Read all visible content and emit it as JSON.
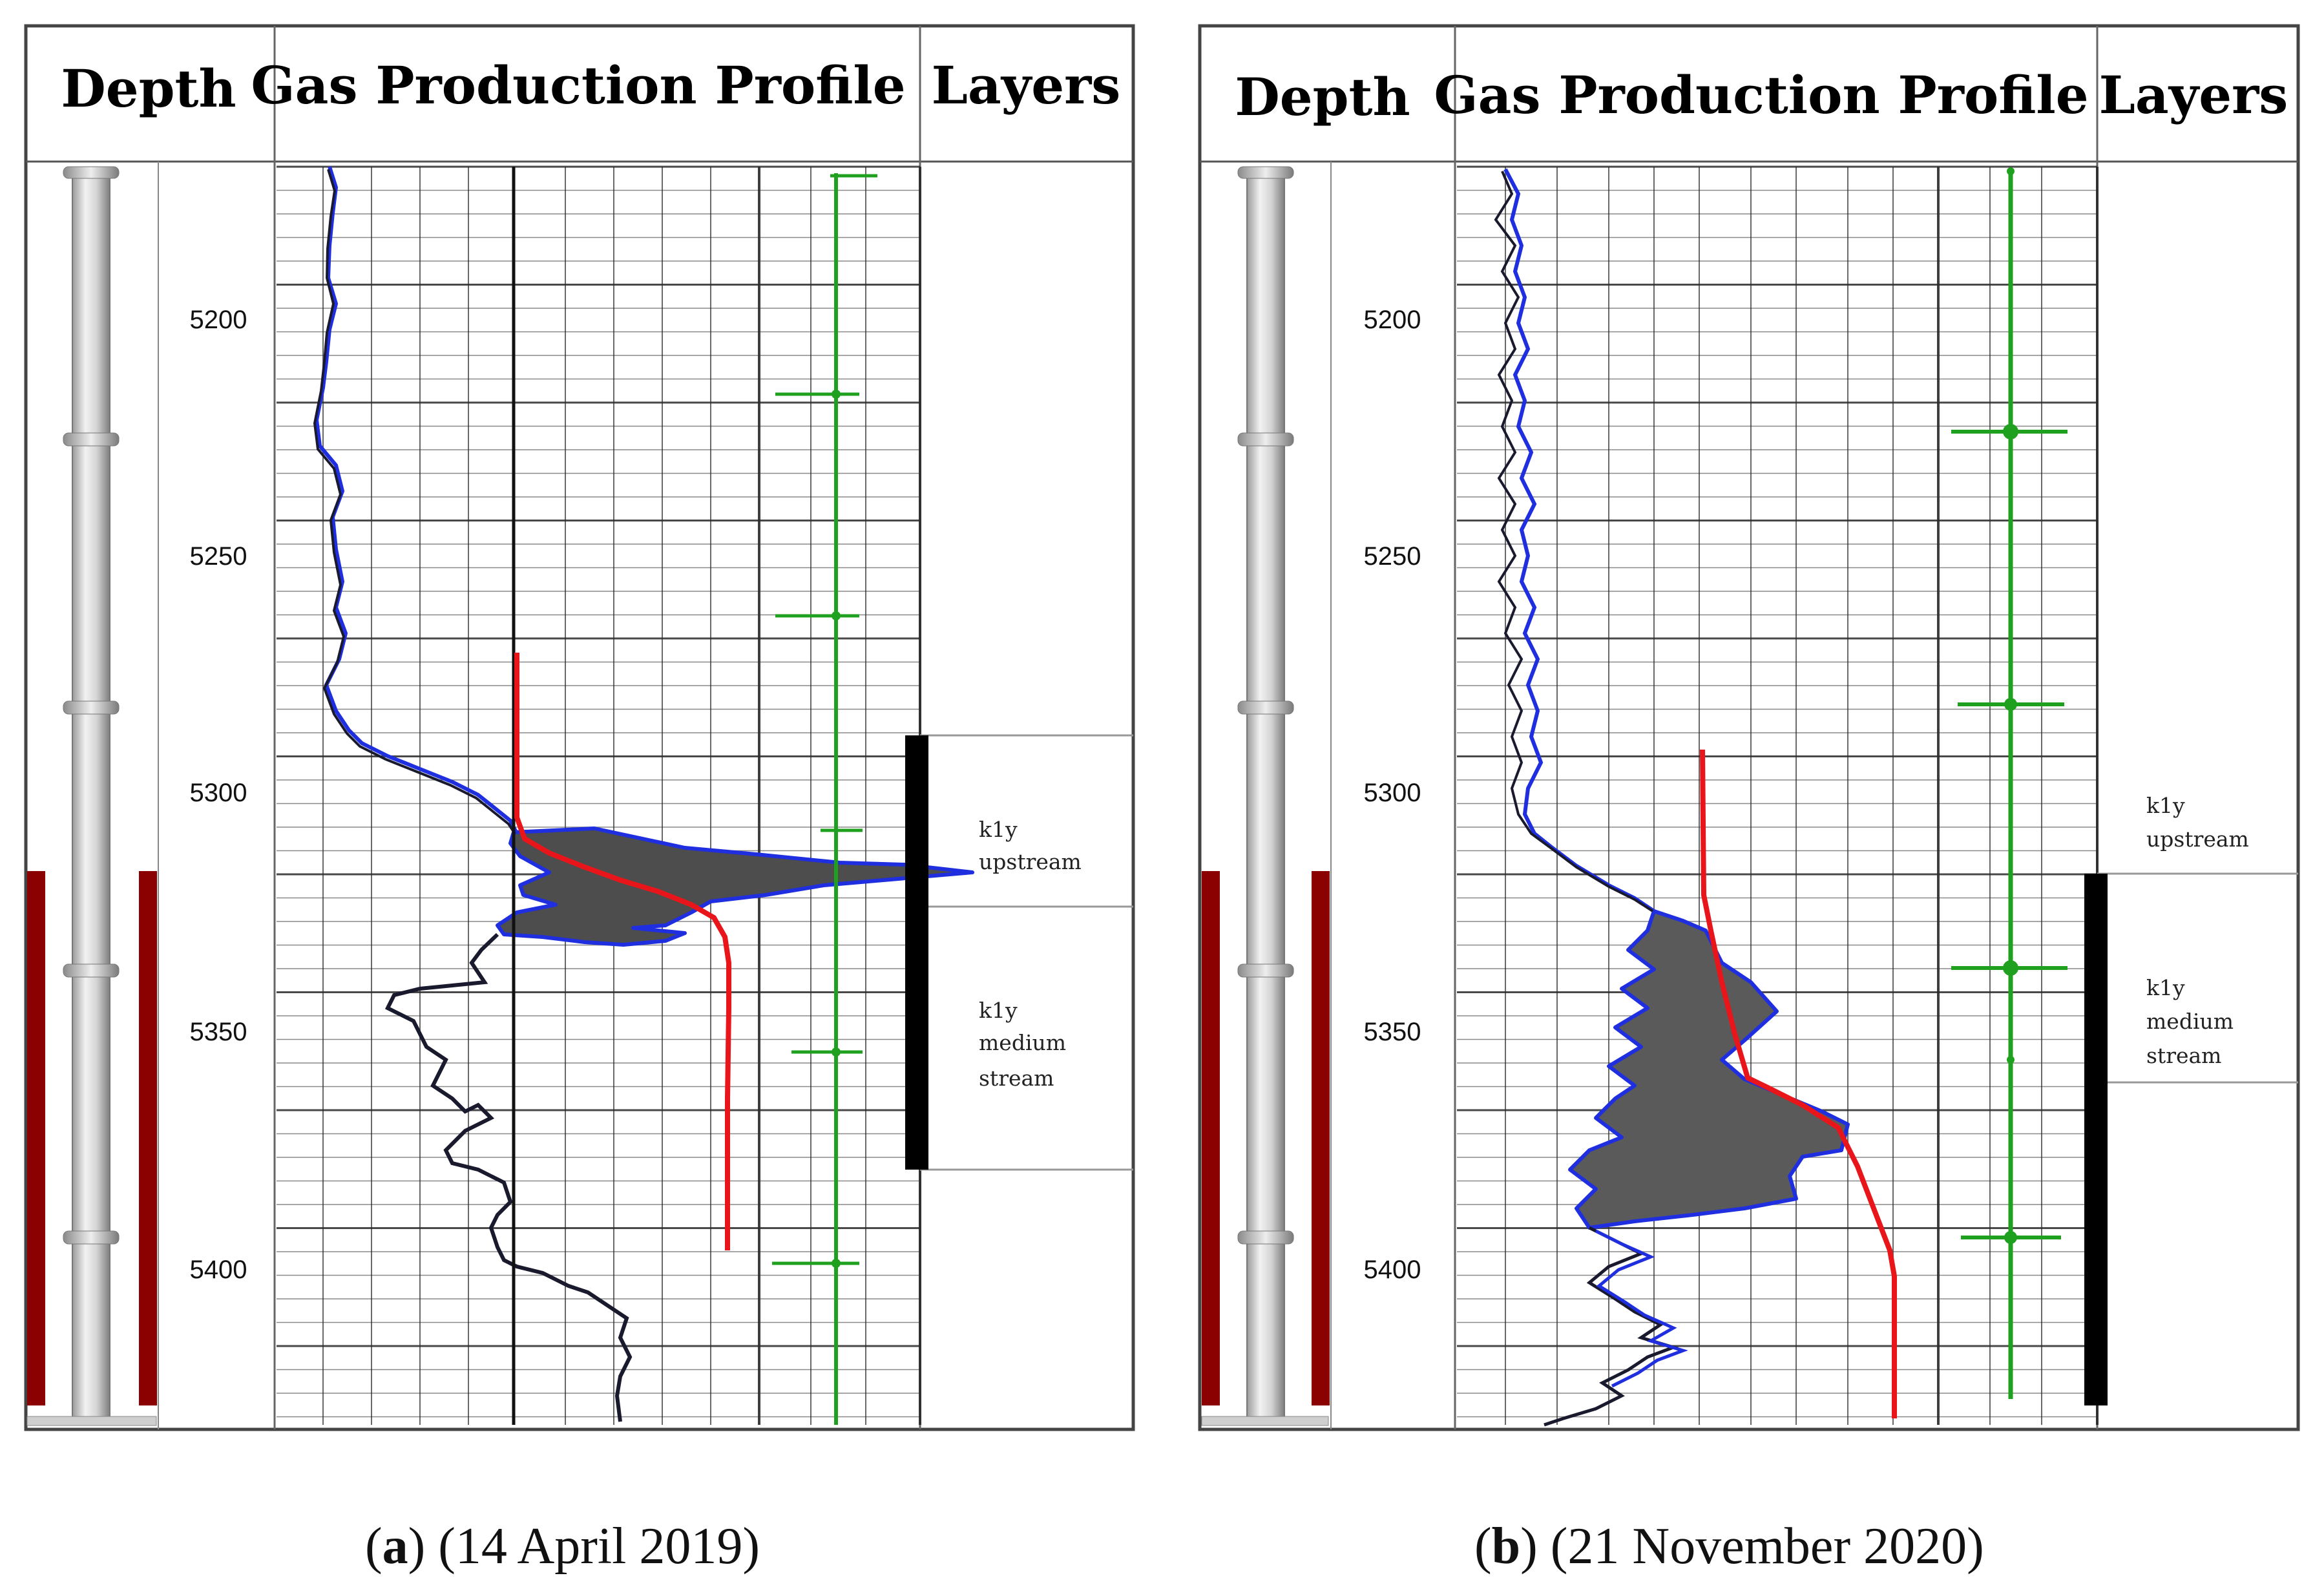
{
  "panels": [
    {
      "id": "a",
      "letter": "a",
      "date": "(14 April 2019)",
      "headers": {
        "depth": "Depth",
        "profile": "Gas Production Profile",
        "layers": "Layers"
      },
      "depth_ticks": [
        "5200",
        "5250",
        "5300",
        "5350",
        "5400"
      ],
      "layers": [
        {
          "name": "k1y",
          "sub": [
            "upstream"
          ]
        },
        {
          "name": "k1y",
          "sub": [
            "medium",
            "stream"
          ]
        }
      ]
    },
    {
      "id": "b",
      "letter": "b",
      "date": "(21 November 2020)",
      "headers": {
        "depth": "Depth",
        "profile": "Gas Production Profile",
        "layers": "Layers"
      },
      "depth_ticks": [
        "5200",
        "5250",
        "5300",
        "5350",
        "5400"
      ],
      "layers": [
        {
          "name": "k1y",
          "sub": [
            "upstream"
          ]
        },
        {
          "name": "k1y",
          "sub": [
            "medium",
            "stream"
          ]
        }
      ]
    }
  ],
  "colors": {
    "curve_black": "#1a1a2e",
    "curve_blue": "#1f2fe0",
    "fill_gray": "#555555",
    "cumulative_red": "#e8161a",
    "green_track": "#1fa11f",
    "perforation_red": "#8b0000",
    "grid": "#2a2a2a"
  }
}
